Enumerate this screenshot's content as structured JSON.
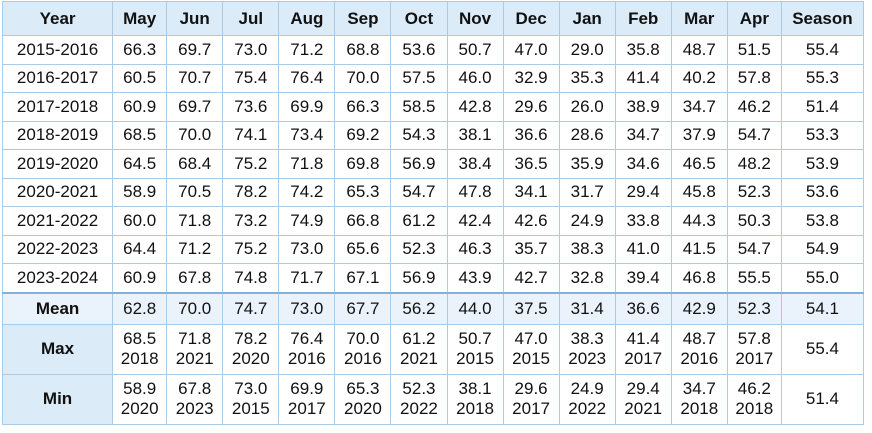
{
  "table": {
    "header": [
      "Year",
      "May",
      "Jun",
      "Jul",
      "Aug",
      "Sep",
      "Oct",
      "Nov",
      "Dec",
      "Jan",
      "Feb",
      "Mar",
      "Apr",
      "Season"
    ],
    "rows": [
      {
        "year": "2015-2016",
        "values": [
          "66.3",
          "69.7",
          "73.0",
          "71.2",
          "68.8",
          "53.6",
          "50.7",
          "47.0",
          "29.0",
          "35.8",
          "48.7",
          "51.5",
          "55.4"
        ]
      },
      {
        "year": "2016-2017",
        "values": [
          "60.5",
          "70.7",
          "75.4",
          "76.4",
          "70.0",
          "57.5",
          "46.0",
          "32.9",
          "35.3",
          "41.4",
          "40.2",
          "57.8",
          "55.3"
        ]
      },
      {
        "year": "2017-2018",
        "values": [
          "60.9",
          "69.7",
          "73.6",
          "69.9",
          "66.3",
          "58.5",
          "42.8",
          "29.6",
          "26.0",
          "38.9",
          "34.7",
          "46.2",
          "51.4"
        ]
      },
      {
        "year": "2018-2019",
        "values": [
          "68.5",
          "70.0",
          "74.1",
          "73.4",
          "69.2",
          "54.3",
          "38.1",
          "36.6",
          "28.6",
          "34.7",
          "37.9",
          "54.7",
          "53.3"
        ]
      },
      {
        "year": "2019-2020",
        "values": [
          "64.5",
          "68.4",
          "75.2",
          "71.8",
          "69.8",
          "56.9",
          "38.4",
          "36.5",
          "35.9",
          "34.6",
          "46.5",
          "48.2",
          "53.9"
        ]
      },
      {
        "year": "2020-2021",
        "values": [
          "58.9",
          "70.5",
          "78.2",
          "74.2",
          "65.3",
          "54.7",
          "47.8",
          "34.1",
          "31.7",
          "29.4",
          "45.8",
          "52.3",
          "53.6"
        ]
      },
      {
        "year": "2021-2022",
        "values": [
          "60.0",
          "71.8",
          "73.2",
          "74.9",
          "66.8",
          "61.2",
          "42.4",
          "42.6",
          "24.9",
          "33.8",
          "44.3",
          "50.3",
          "53.8"
        ]
      },
      {
        "year": "2022-2023",
        "values": [
          "64.4",
          "71.2",
          "75.2",
          "73.0",
          "65.6",
          "52.3",
          "46.3",
          "35.7",
          "38.3",
          "41.0",
          "41.5",
          "54.7",
          "54.9"
        ]
      },
      {
        "year": "2023-2024",
        "values": [
          "60.9",
          "67.8",
          "74.8",
          "71.7",
          "67.1",
          "56.9",
          "43.9",
          "42.7",
          "32.8",
          "39.4",
          "46.8",
          "55.5",
          "55.0"
        ]
      }
    ],
    "mean": {
      "label": "Mean",
      "values": [
        "62.8",
        "70.0",
        "74.7",
        "73.0",
        "67.7",
        "56.2",
        "44.0",
        "37.5",
        "31.4",
        "36.6",
        "42.9",
        "52.3",
        "54.1"
      ]
    },
    "max": {
      "label": "Max",
      "values": [
        "68.5",
        "71.8",
        "78.2",
        "76.4",
        "70.0",
        "61.2",
        "50.7",
        "47.0",
        "38.3",
        "41.4",
        "48.7",
        "57.8"
      ],
      "years": [
        "2018",
        "2021",
        "2020",
        "2016",
        "2016",
        "2021",
        "2015",
        "2015",
        "2023",
        "2017",
        "2016",
        "2017"
      ],
      "season": "55.4"
    },
    "min": {
      "label": "Min",
      "values": [
        "58.9",
        "67.8",
        "73.0",
        "69.9",
        "65.3",
        "52.3",
        "38.1",
        "29.6",
        "24.9",
        "29.4",
        "34.7",
        "46.2"
      ],
      "years": [
        "2020",
        "2023",
        "2015",
        "2017",
        "2020",
        "2022",
        "2018",
        "2017",
        "2022",
        "2021",
        "2018",
        "2018"
      ],
      "season": "51.4"
    }
  }
}
